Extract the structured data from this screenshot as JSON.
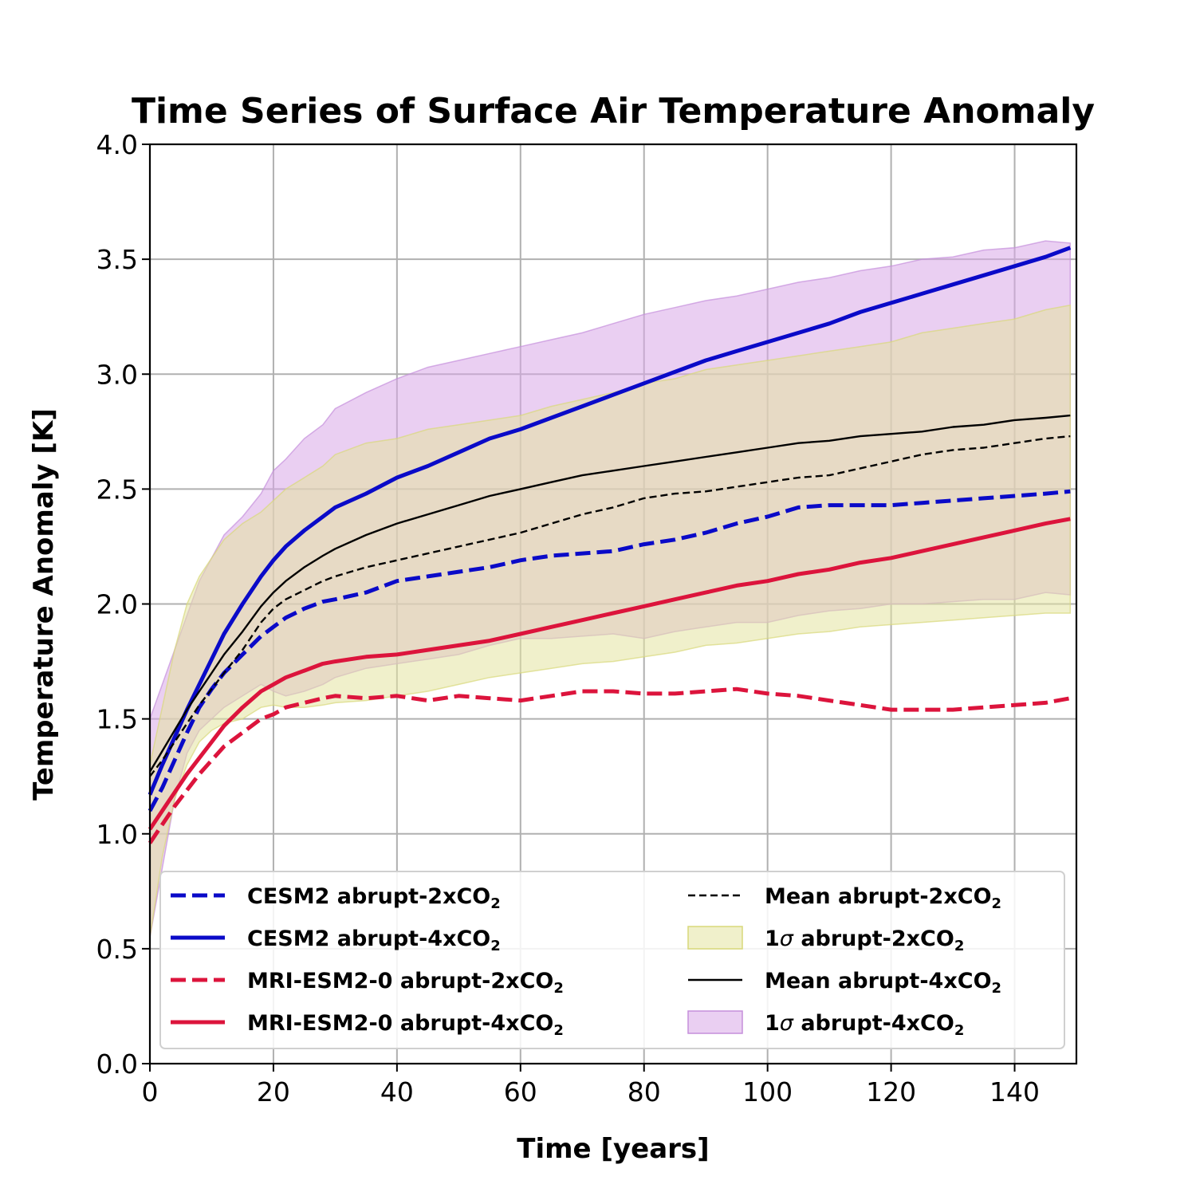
{
  "chart_data": {
    "type": "line",
    "title": "Time Series of Surface Air Temperature Anomaly",
    "xlabel": "Time [years]",
    "ylabel": "Temperature Anomaly [K]",
    "xlim": [
      0,
      150
    ],
    "ylim": [
      0.0,
      4.0
    ],
    "x_ticks": [
      "0",
      "20",
      "40",
      "60",
      "80",
      "100",
      "120",
      "140"
    ],
    "y_ticks": [
      "0.0",
      "0.5",
      "1.0",
      "1.5",
      "2.0",
      "2.5",
      "3.0",
      "3.5",
      "4.0"
    ],
    "grid": true,
    "legend_position": "lower-center",
    "x": [
      0,
      2,
      4,
      6,
      8,
      10,
      12,
      15,
      18,
      20,
      22,
      25,
      28,
      30,
      35,
      40,
      45,
      50,
      55,
      60,
      65,
      70,
      75,
      80,
      85,
      90,
      95,
      100,
      105,
      110,
      115,
      120,
      125,
      130,
      135,
      140,
      145,
      149
    ],
    "bands": [
      {
        "name": "1σ abrupt-4xCO₂",
        "label_main": "1",
        "label_sigma": "σ",
        "label_rest": " abrupt-4xCO",
        "label_sub": "2",
        "color": "#d8a8e8",
        "edge_color": "#c58fdb",
        "upper": [
          1.5,
          1.65,
          1.8,
          1.95,
          2.1,
          2.2,
          2.3,
          2.38,
          2.48,
          2.58,
          2.63,
          2.72,
          2.78,
          2.85,
          2.92,
          2.98,
          3.03,
          3.06,
          3.09,
          3.12,
          3.15,
          3.18,
          3.22,
          3.26,
          3.29,
          3.32,
          3.34,
          3.37,
          3.4,
          3.42,
          3.45,
          3.47,
          3.5,
          3.51,
          3.54,
          3.55,
          3.58,
          3.57
        ],
        "lower": [
          0.55,
          0.85,
          1.15,
          1.35,
          1.45,
          1.5,
          1.55,
          1.6,
          1.65,
          1.62,
          1.6,
          1.62,
          1.65,
          1.68,
          1.72,
          1.74,
          1.76,
          1.78,
          1.82,
          1.85,
          1.85,
          1.86,
          1.87,
          1.85,
          1.88,
          1.9,
          1.92,
          1.92,
          1.95,
          1.97,
          1.98,
          2.0,
          2.0,
          2.01,
          2.02,
          2.02,
          2.05,
          2.04
        ]
      },
      {
        "name": "1σ abrupt-2xCO₂",
        "label_main": "1",
        "label_sigma": "σ",
        "label_rest": " abrupt-2xCO",
        "label_sub": "2",
        "color": "#e3e3a0",
        "edge_color": "#d8d87a",
        "upper": [
          1.3,
          1.55,
          1.8,
          2.0,
          2.12,
          2.2,
          2.28,
          2.35,
          2.4,
          2.45,
          2.5,
          2.55,
          2.6,
          2.65,
          2.7,
          2.72,
          2.76,
          2.78,
          2.8,
          2.82,
          2.86,
          2.89,
          2.92,
          2.96,
          2.98,
          3.02,
          3.04,
          3.06,
          3.08,
          3.1,
          3.12,
          3.14,
          3.18,
          3.2,
          3.22,
          3.24,
          3.28,
          3.3
        ],
        "lower": [
          0.55,
          0.9,
          1.15,
          1.3,
          1.4,
          1.45,
          1.48,
          1.5,
          1.55,
          1.56,
          1.55,
          1.55,
          1.56,
          1.57,
          1.58,
          1.6,
          1.62,
          1.65,
          1.68,
          1.7,
          1.72,
          1.74,
          1.75,
          1.77,
          1.79,
          1.82,
          1.83,
          1.85,
          1.87,
          1.88,
          1.9,
          1.91,
          1.92,
          1.93,
          1.94,
          1.95,
          1.96,
          1.96
        ]
      }
    ],
    "series": [
      {
        "name": "CESM2 abrupt-2xCO₂",
        "label_main": "CESM2 abrupt-2xCO",
        "label_sub": "2",
        "color": "#0a0ac8",
        "dashed": true,
        "width": "thick",
        "values": [
          1.1,
          1.2,
          1.32,
          1.44,
          1.55,
          1.63,
          1.7,
          1.78,
          1.86,
          1.9,
          1.94,
          1.98,
          2.01,
          2.02,
          2.05,
          2.1,
          2.12,
          2.14,
          2.16,
          2.19,
          2.21,
          2.22,
          2.23,
          2.26,
          2.28,
          2.31,
          2.35,
          2.38,
          2.42,
          2.43,
          2.43,
          2.43,
          2.44,
          2.45,
          2.46,
          2.47,
          2.48,
          2.49
        ]
      },
      {
        "name": "CESM2 abrupt-4xCO₂",
        "label_main": "CESM2 abrupt-4xCO",
        "label_sub": "2",
        "color": "#0a0ac8",
        "dashed": false,
        "width": "thick",
        "values": [
          1.17,
          1.3,
          1.42,
          1.54,
          1.65,
          1.76,
          1.87,
          2.0,
          2.12,
          2.19,
          2.25,
          2.32,
          2.38,
          2.42,
          2.48,
          2.55,
          2.6,
          2.66,
          2.72,
          2.76,
          2.81,
          2.86,
          2.91,
          2.96,
          3.01,
          3.06,
          3.1,
          3.14,
          3.18,
          3.22,
          3.27,
          3.31,
          3.35,
          3.39,
          3.43,
          3.47,
          3.51,
          3.55
        ]
      },
      {
        "name": "MRI-ESM2-0 abrupt-2xCO₂",
        "label_main": "MRI-ESM2-0 abrupt-2xCO",
        "label_sub": "2",
        "color": "#dc143c",
        "dashed": true,
        "width": "thick",
        "values": [
          0.96,
          1.04,
          1.12,
          1.19,
          1.26,
          1.32,
          1.38,
          1.44,
          1.5,
          1.52,
          1.55,
          1.57,
          1.59,
          1.6,
          1.59,
          1.6,
          1.58,
          1.6,
          1.59,
          1.58,
          1.6,
          1.62,
          1.62,
          1.61,
          1.61,
          1.62,
          1.63,
          1.61,
          1.6,
          1.58,
          1.56,
          1.54,
          1.54,
          1.54,
          1.55,
          1.56,
          1.57,
          1.59
        ]
      },
      {
        "name": "MRI-ESM2-0 abrupt-4xCO₂",
        "label_main": "MRI-ESM2-0 abrupt-4xCO",
        "label_sub": "2",
        "color": "#dc143c",
        "dashed": false,
        "width": "thick",
        "values": [
          1.02,
          1.1,
          1.18,
          1.26,
          1.33,
          1.4,
          1.47,
          1.55,
          1.62,
          1.65,
          1.68,
          1.71,
          1.74,
          1.75,
          1.77,
          1.78,
          1.8,
          1.82,
          1.84,
          1.87,
          1.9,
          1.93,
          1.96,
          1.99,
          2.02,
          2.05,
          2.08,
          2.1,
          2.13,
          2.15,
          2.18,
          2.2,
          2.23,
          2.26,
          2.29,
          2.32,
          2.35,
          2.37
        ]
      },
      {
        "name": "Mean abrupt-2xCO₂",
        "label_main": "Mean abrupt-2xCO",
        "label_sub": "2",
        "color": "#000000",
        "dashed": true,
        "width": "thin",
        "values": [
          1.25,
          1.32,
          1.4,
          1.48,
          1.56,
          1.63,
          1.7,
          1.8,
          1.92,
          1.98,
          2.02,
          2.06,
          2.1,
          2.12,
          2.16,
          2.19,
          2.22,
          2.25,
          2.28,
          2.31,
          2.35,
          2.39,
          2.42,
          2.46,
          2.48,
          2.49,
          2.51,
          2.53,
          2.55,
          2.56,
          2.59,
          2.62,
          2.65,
          2.67,
          2.68,
          2.7,
          2.72,
          2.73
        ]
      },
      {
        "name": "Mean abrupt-4xCO₂",
        "label_main": "Mean abrupt-4xCO",
        "label_sub": "2",
        "color": "#000000",
        "dashed": false,
        "width": "thin",
        "values": [
          1.27,
          1.36,
          1.45,
          1.54,
          1.62,
          1.7,
          1.78,
          1.88,
          1.99,
          2.05,
          2.1,
          2.16,
          2.21,
          2.24,
          2.3,
          2.35,
          2.39,
          2.43,
          2.47,
          2.5,
          2.53,
          2.56,
          2.58,
          2.6,
          2.62,
          2.64,
          2.66,
          2.68,
          2.7,
          2.71,
          2.73,
          2.74,
          2.75,
          2.77,
          2.78,
          2.8,
          2.81,
          2.82
        ]
      }
    ],
    "legend": {
      "left": [
        {
          "ref": "series",
          "index": 0
        },
        {
          "ref": "series",
          "index": 1
        },
        {
          "ref": "series",
          "index": 2
        },
        {
          "ref": "series",
          "index": 3
        }
      ],
      "right": [
        {
          "ref": "series",
          "index": 4
        },
        {
          "ref": "bands",
          "index": 1
        },
        {
          "ref": "series",
          "index": 5
        },
        {
          "ref": "bands",
          "index": 0
        }
      ]
    }
  }
}
